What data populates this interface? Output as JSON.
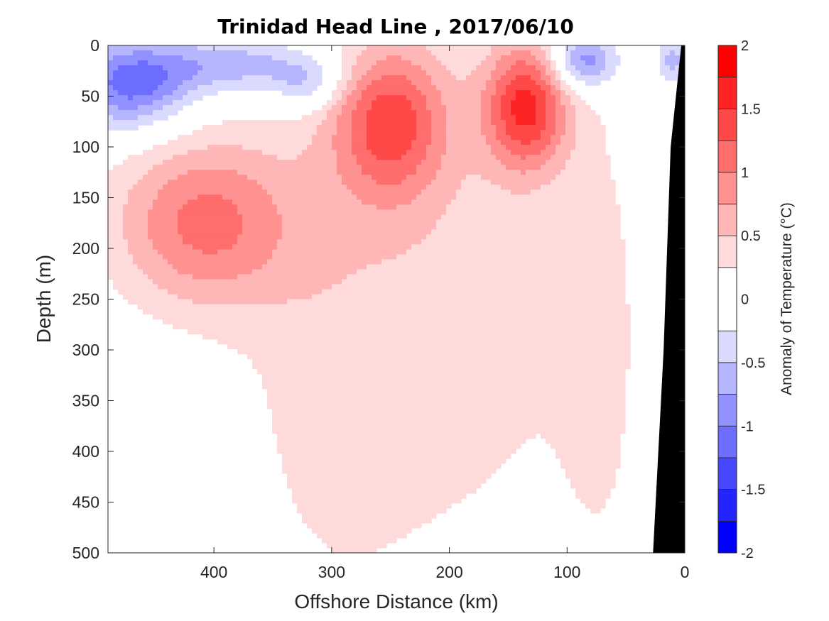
{
  "chart_data": {
    "type": "heatmap",
    "subtype": "filled-contour",
    "title": "Trinidad Head Line , 2017/06/10",
    "xlabel": "Offshore Distance (km)",
    "ylabel": "Depth (m)",
    "x_reversed": true,
    "y_reversed": true,
    "xlim": [
      490,
      0
    ],
    "ylim": [
      0,
      500
    ],
    "xticks": [
      400,
      300,
      200,
      100,
      0
    ],
    "yticks": [
      0,
      50,
      100,
      150,
      200,
      250,
      300,
      350,
      400,
      450,
      500
    ],
    "colorbar": {
      "label": "Anomaly of Temperature (°C)",
      "range": [
        -2,
        2
      ],
      "levels": [
        -2,
        -1.75,
        -1.5,
        -1.25,
        -1,
        -0.75,
        -0.5,
        -0.25,
        0.25,
        0.5,
        0.75,
        1,
        1.25,
        1.5,
        1.75,
        2
      ],
      "ticks": [
        -2,
        -1.5,
        -1,
        -0.5,
        0,
        0.5,
        1,
        1.5,
        2
      ],
      "colors": [
        "#0000ff",
        "#2424ff",
        "#4848ff",
        "#6d6dff",
        "#9191ff",
        "#b6b6ff",
        "#dadaff",
        "#ffffff",
        "#ffdada",
        "#ffb6b6",
        "#ff9191",
        "#ff6d6d",
        "#ff4848",
        "#ff2424",
        "#ff0000"
      ]
    },
    "bathymetry_color": "#000000",
    "features": [
      {
        "name": "warm anomaly core",
        "center_km": 410,
        "depth_m": 165,
        "value": 1.0
      },
      {
        "name": "warm anomaly core",
        "center_km": 250,
        "depth_m": 65,
        "value": 1.25
      },
      {
        "name": "warm anomaly core",
        "center_km": 130,
        "depth_m": 55,
        "value": 1.5
      },
      {
        "name": "cold anomaly",
        "center_km": 470,
        "depth_m": 45,
        "value": -1.0
      },
      {
        "name": "cold anomaly",
        "center_km": 85,
        "depth_m": 15,
        "value": -1.0
      },
      {
        "name": "cold anomaly",
        "center_km": 320,
        "depth_m": 40,
        "value": -0.75
      }
    ]
  }
}
